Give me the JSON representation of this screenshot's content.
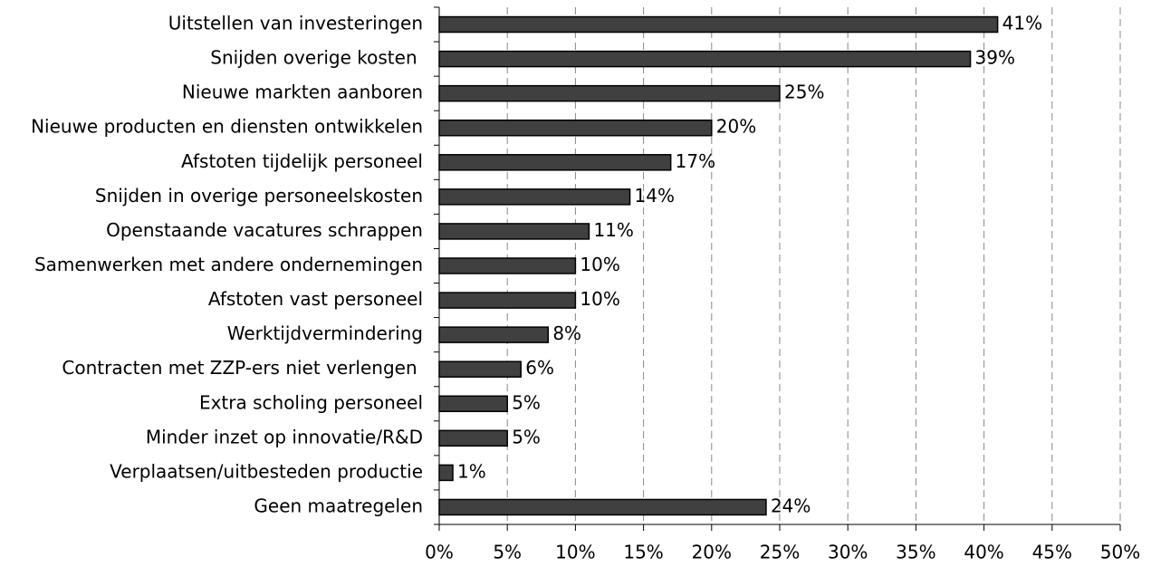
{
  "chart_data": {
    "type": "bar",
    "orientation": "horizontal",
    "categories": [
      "Uitstellen van investeringen",
      "Snijden overige kosten ",
      "Nieuwe markten aanboren",
      "Nieuwe producten en diensten ontwikkelen",
      "Afstoten tijdelijk personeel",
      "Snijden in overige personeelskosten",
      "Openstaande vacatures schrappen",
      "Samenwerken met andere ondernemingen",
      "Afstoten vast personeel",
      "Werktijdvermindering",
      "Contracten met ZZP-ers niet verlengen ",
      "Extra scholing personeel",
      "Minder inzet op innovatie/R&D",
      "Verplaatsen/uitbesteden productie",
      "Geen maatregelen"
    ],
    "values": [
      41,
      39,
      25,
      20,
      17,
      14,
      11,
      10,
      10,
      8,
      6,
      5,
      5,
      1,
      24
    ],
    "value_labels": [
      "41%",
      "39%",
      "25%",
      "20%",
      "17%",
      "14%",
      "11%",
      "10%",
      "10%",
      "8%",
      "6%",
      "5%",
      "5%",
      "1%",
      "24%"
    ],
    "color": "#404040",
    "xlim": [
      0,
      50
    ],
    "xticks": [
      {
        "value": 0,
        "label": "0%"
      },
      {
        "value": 5,
        "label": "5%"
      },
      {
        "value": 10,
        "label": "10%"
      },
      {
        "value": 15,
        "label": "15%"
      },
      {
        "value": 20,
        "label": "20%"
      },
      {
        "value": 25,
        "label": "25%"
      },
      {
        "value": 30,
        "label": "30%"
      },
      {
        "value": 35,
        "label": "35%"
      },
      {
        "value": 40,
        "label": "40%"
      },
      {
        "value": 45,
        "label": "45%"
      },
      {
        "value": 50,
        "label": "50%"
      }
    ],
    "grid": true
  }
}
